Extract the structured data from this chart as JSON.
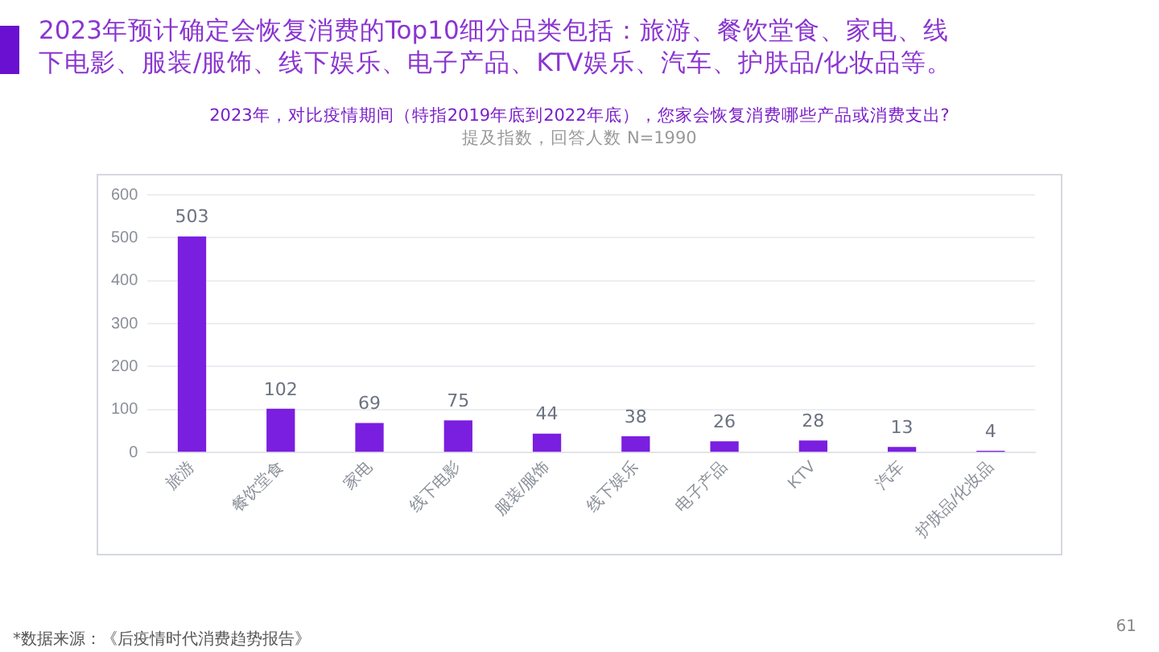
{
  "chart_data": {
    "type": "bar",
    "title": "2023年预计确定会恢复消费的Top10细分品类包括：旅游、餐饮堂食、家电、线下电影、服装/服饰、线下娱乐、电子产品、KTV娱乐、汽车、护肤品/化妆品等。",
    "subtitle": "2023年，对比疫情期间（特指2019年底到2022年底），您家会恢复消费哪些产品或消费支出?",
    "annotations": [
      "提及指数，回答人数 N=1990",
      "*数据来源：《后疫情时代消费趋势报告》",
      "61"
    ],
    "categories": [
      "旅游",
      "餐饮堂食",
      "家电",
      "线下电影",
      "服装/服饰",
      "线下娱乐",
      "电子产品",
      "KTV",
      "汽车",
      "护肤品/化妆品"
    ],
    "values": [
      503,
      102,
      69,
      75,
      44,
      38,
      26,
      28,
      13,
      4
    ],
    "color": "#7a1ee0",
    "ylim": [
      0,
      600
    ],
    "yticks": [
      0,
      100,
      200,
      300,
      400,
      500,
      600
    ],
    "grid": "y",
    "data_labels": true
  }
}
